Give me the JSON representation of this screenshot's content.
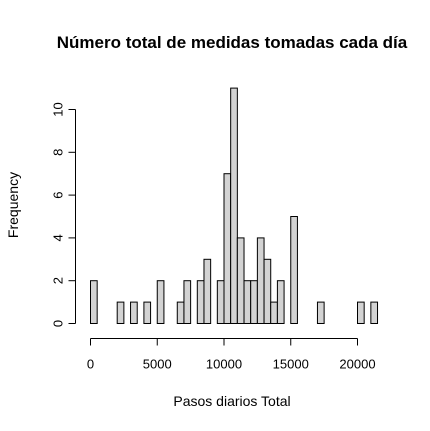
{
  "chart_data": {
    "type": "bar",
    "title": "Número total de medidas tomadas cada día",
    "xlabel": "Pasos diarios Total",
    "ylabel": "Frequency",
    "x_ticks": [
      0,
      5000,
      10000,
      15000,
      20000
    ],
    "y_ticks": [
      0,
      2,
      4,
      6,
      8,
      10
    ],
    "xlim": [
      0,
      21500
    ],
    "ylim": [
      0,
      11
    ],
    "bin_width": 500,
    "bins_start": [
      0,
      500,
      1000,
      1500,
      2000,
      2500,
      3000,
      3500,
      4000,
      4500,
      5000,
      5500,
      6000,
      6500,
      7000,
      7500,
      8000,
      8500,
      9000,
      9500,
      10000,
      10500,
      11000,
      11500,
      12000,
      12500,
      13000,
      13500,
      14000,
      14500,
      15000,
      15500,
      16000,
      16500,
      17000,
      17500,
      18000,
      18500,
      19000,
      19500,
      20000,
      20500,
      21000
    ],
    "values": [
      2,
      0,
      0,
      0,
      1,
      0,
      1,
      0,
      1,
      0,
      2,
      0,
      0,
      1,
      2,
      0,
      2,
      3,
      0,
      2,
      7,
      11,
      4,
      2,
      2,
      4,
      3,
      1,
      2,
      0,
      5,
      0,
      0,
      0,
      1,
      0,
      0,
      0,
      0,
      0,
      1,
      0,
      1
    ],
    "colors": {
      "bar_fill": "#d3d3d3",
      "bar_stroke": "#000000"
    }
  }
}
